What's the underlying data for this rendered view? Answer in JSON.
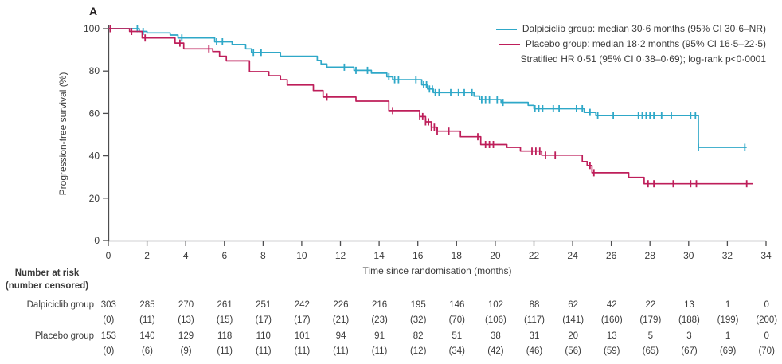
{
  "panel_label": "A",
  "colors": {
    "dalpiciclib_line": "#2FA8C8",
    "placebo_line": "#BE1E5A",
    "axis": "#4D4D4F",
    "text": "#3B3B3B"
  },
  "legend": {
    "entries": [
      {
        "label": "Dalpiciclib group: median 30·6 months (95% CI 30·6–NR)",
        "color": "#2FA8C8"
      },
      {
        "label": "Placebo group: median 18·2 months (95% CI 16·5–22·5)",
        "color": "#BE1E5A"
      }
    ],
    "note": "Stratified HR 0·51 (95% CI 0·38–0·69); log-rank p<0·0001"
  },
  "chart_data": {
    "type": "line",
    "subtype": "kaplan_meier_step",
    "title": "",
    "xlabel": "Time since randomisation (months)",
    "ylabel": "Progression-free survival (%)",
    "xlim": [
      0,
      34
    ],
    "ylim": [
      0,
      100
    ],
    "xticks": [
      0,
      2,
      4,
      6,
      8,
      10,
      12,
      14,
      16,
      18,
      20,
      22,
      24,
      26,
      28,
      30,
      32,
      34
    ],
    "yticks": [
      0,
      20,
      40,
      60,
      80,
      100
    ],
    "grid": false,
    "legend_position": "top-right",
    "series": [
      {
        "name": "Dalpiciclib group",
        "color": "#2FA8C8",
        "median_months": "30·6",
        "ci95": "30·6–NR",
        "steps": [
          [
            0,
            100
          ],
          [
            1.6,
            98.7
          ],
          [
            2.0,
            98
          ],
          [
            3.2,
            97
          ],
          [
            3.6,
            95.6
          ],
          [
            5.5,
            93.8
          ],
          [
            6.4,
            92.5
          ],
          [
            7.1,
            90.5
          ],
          [
            7.4,
            88.8
          ],
          [
            8.9,
            87
          ],
          [
            10.8,
            85
          ],
          [
            11.0,
            83.3
          ],
          [
            11.3,
            81.8
          ],
          [
            12.7,
            80.3
          ],
          [
            13.6,
            79
          ],
          [
            14.4,
            77.3
          ],
          [
            14.7,
            75.9
          ],
          [
            16.2,
            73.5
          ],
          [
            16.5,
            71.5
          ],
          [
            16.8,
            69.8
          ],
          [
            18.9,
            68.2
          ],
          [
            19.2,
            66.5
          ],
          [
            20.3,
            65.2
          ],
          [
            21.7,
            63.8
          ],
          [
            22.0,
            62.2
          ],
          [
            24.6,
            60.5
          ],
          [
            25.2,
            59
          ],
          [
            30.5,
            44
          ],
          [
            33.0,
            44
          ]
        ],
        "censor_times": [
          1.5,
          1.8,
          3.8,
          5.6,
          5.9,
          7.5,
          7.9,
          12.2,
          12.8,
          13.4,
          14.5,
          14.8,
          15.0,
          15.9,
          16.3,
          16.45,
          16.6,
          16.75,
          16.9,
          17.1,
          17.7,
          18.1,
          18.4,
          18.8,
          19.3,
          19.5,
          19.7,
          20.1,
          20.4,
          22.05,
          22.25,
          22.45,
          23.0,
          23.3,
          24.2,
          24.5,
          24.9,
          25.3,
          26.1,
          27.4,
          27.6,
          27.8,
          28.0,
          28.2,
          28.6,
          29.1,
          30.1,
          30.35,
          30.5,
          32.9
        ]
      },
      {
        "name": "Placebo group",
        "color": "#BE1E5A",
        "median_months": "18·2",
        "ci95": "16·5–22·5",
        "steps": [
          [
            0,
            100
          ],
          [
            1.1,
            98.7
          ],
          [
            1.75,
            95.6
          ],
          [
            3.45,
            93.2
          ],
          [
            3.9,
            90.5
          ],
          [
            5.4,
            89.2
          ],
          [
            5.75,
            87
          ],
          [
            6.1,
            84.8
          ],
          [
            7.3,
            79.7
          ],
          [
            8.3,
            77.8
          ],
          [
            8.9,
            75.9
          ],
          [
            9.25,
            73.4
          ],
          [
            10.6,
            70.8
          ],
          [
            11.1,
            67.7
          ],
          [
            12.8,
            65.8
          ],
          [
            14.5,
            61.3
          ],
          [
            16.1,
            58.5
          ],
          [
            16.4,
            56
          ],
          [
            16.7,
            53.5
          ],
          [
            17.0,
            51.6
          ],
          [
            18.2,
            49
          ],
          [
            19.25,
            45.3
          ],
          [
            20.6,
            44
          ],
          [
            21.3,
            42.2
          ],
          [
            22.4,
            40.3
          ],
          [
            24.5,
            37.3
          ],
          [
            24.75,
            35.4
          ],
          [
            25.0,
            32
          ],
          [
            26.9,
            29.8
          ],
          [
            27.7,
            26.8
          ],
          [
            33.3,
            26.8
          ]
        ],
        "censor_times": [
          0.1,
          1.2,
          1.9,
          3.7,
          5.2,
          11.3,
          14.7,
          16.1,
          16.25,
          16.4,
          16.55,
          16.7,
          16.85,
          17.0,
          17.6,
          19.1,
          19.5,
          19.7,
          19.9,
          21.9,
          22.1,
          22.3,
          22.6,
          23.1,
          24.9,
          25.1,
          27.9,
          28.2,
          29.2,
          30.1,
          30.4,
          33.0
        ]
      }
    ]
  },
  "risk_table": {
    "header_line1": "Number at risk",
    "header_line2": "(number censored)",
    "timepoints": [
      0,
      2,
      4,
      6,
      8,
      10,
      12,
      14,
      16,
      18,
      20,
      22,
      24,
      26,
      28,
      30,
      32,
      34
    ],
    "rows": [
      {
        "label": "Dalpiciclib group",
        "at_risk": [
          303,
          285,
          270,
          261,
          251,
          242,
          226,
          216,
          195,
          146,
          102,
          88,
          62,
          42,
          22,
          13,
          1,
          0
        ],
        "censored": [
          0,
          11,
          13,
          15,
          17,
          17,
          21,
          23,
          32,
          70,
          106,
          117,
          141,
          160,
          179,
          188,
          199,
          200
        ]
      },
      {
        "label": "Placebo group",
        "at_risk": [
          153,
          140,
          129,
          118,
          110,
          101,
          94,
          91,
          82,
          51,
          38,
          31,
          20,
          13,
          5,
          3,
          1,
          0
        ],
        "censored": [
          0,
          6,
          9,
          11,
          11,
          11,
          11,
          11,
          12,
          34,
          42,
          46,
          56,
          59,
          65,
          67,
          69,
          70
        ]
      }
    ]
  }
}
